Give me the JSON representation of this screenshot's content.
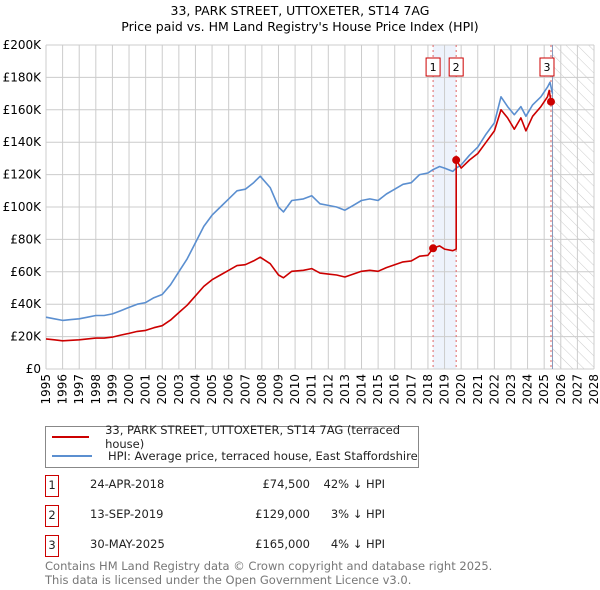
{
  "chart_data": {
    "type": "line",
    "title": "33, PARK STREET, UTTOXETER, ST14 7AG",
    "subtitle": "Price paid vs. HM Land Registry's House Price Index (HPI)",
    "xlim": [
      1995,
      2028
    ],
    "ylim": [
      0,
      200000
    ],
    "grid": true,
    "y_ticks": [
      0,
      20000,
      40000,
      60000,
      80000,
      100000,
      120000,
      140000,
      160000,
      180000,
      200000
    ],
    "y_tick_labels": [
      "£0",
      "£20K",
      "£40K",
      "£60K",
      "£80K",
      "£100K",
      "£120K",
      "£140K",
      "£160K",
      "£180K",
      "£200K"
    ],
    "x_tick_labels": [
      "1995",
      "1996",
      "1997",
      "1998",
      "1999",
      "2000",
      "2001",
      "2002",
      "2003",
      "2004",
      "2005",
      "2006",
      "2007",
      "2008",
      "2009",
      "2010",
      "2011",
      "2012",
      "2013",
      "2014",
      "2015",
      "2016",
      "2017",
      "2018",
      "2019",
      "2020",
      "2021",
      "2022",
      "2023",
      "2024",
      "2025",
      "2026",
      "2027",
      "2028"
    ],
    "series": [
      {
        "name": "33, PARK STREET, UTTOXETER, ST14 7AG (terraced house)",
        "color": "#cc0000",
        "points": [
          [
            1995,
            18600
          ],
          [
            1995.5,
            18000
          ],
          [
            1996,
            17400
          ],
          [
            1996.5,
            17700
          ],
          [
            1997,
            18000
          ],
          [
            1997.5,
            18600
          ],
          [
            1998,
            19100
          ],
          [
            1998.5,
            19100
          ],
          [
            1999,
            19700
          ],
          [
            1999.5,
            20900
          ],
          [
            2000,
            22000
          ],
          [
            2000.5,
            23200
          ],
          [
            2001,
            23800
          ],
          [
            2001.5,
            25500
          ],
          [
            2002,
            26700
          ],
          [
            2002.5,
            30200
          ],
          [
            2003,
            34800
          ],
          [
            2003.5,
            39400
          ],
          [
            2004,
            45200
          ],
          [
            2004.5,
            51000
          ],
          [
            2005,
            55100
          ],
          [
            2005.5,
            58000
          ],
          [
            2006,
            60900
          ],
          [
            2006.5,
            63800
          ],
          [
            2007,
            64400
          ],
          [
            2007.5,
            66700
          ],
          [
            2007.9,
            69000
          ],
          [
            2008.5,
            65000
          ],
          [
            2009,
            58000
          ],
          [
            2009.3,
            56300
          ],
          [
            2009.8,
            60300
          ],
          [
            2010.5,
            60900
          ],
          [
            2011,
            62000
          ],
          [
            2011.5,
            59200
          ],
          [
            2012,
            58600
          ],
          [
            2012.5,
            58000
          ],
          [
            2013,
            56800
          ],
          [
            2013.5,
            58600
          ],
          [
            2014,
            60300
          ],
          [
            2014.5,
            60900
          ],
          [
            2015,
            60300
          ],
          [
            2015.5,
            62600
          ],
          [
            2016,
            64400
          ],
          [
            2016.5,
            66100
          ],
          [
            2017,
            66700
          ],
          [
            2017.5,
            69600
          ],
          [
            2018,
            70200
          ],
          [
            2018.31,
            74500
          ],
          [
            2018.7,
            76000
          ],
          [
            2019,
            74000
          ],
          [
            2019.5,
            73000
          ],
          [
            2019.7,
            74000
          ],
          [
            2019.7,
            129000
          ],
          [
            2020,
            124000
          ],
          [
            2020.5,
            129000
          ],
          [
            2021,
            133000
          ],
          [
            2021.5,
            140000
          ],
          [
            2022,
            147000
          ],
          [
            2022.4,
            160000
          ],
          [
            2022.8,
            155000
          ],
          [
            2023.2,
            148000
          ],
          [
            2023.6,
            155000
          ],
          [
            2023.9,
            147000
          ],
          [
            2024.3,
            156000
          ],
          [
            2024.8,
            162000
          ],
          [
            2025.2,
            168000
          ],
          [
            2025.3,
            172000
          ],
          [
            2025.41,
            165000
          ]
        ]
      },
      {
        "name": "HPI: Average price, terraced house, East Staffordshire",
        "color": "#5b8fd0",
        "points": [
          [
            1995,
            32000
          ],
          [
            1995.5,
            31000
          ],
          [
            1996,
            30000
          ],
          [
            1996.5,
            30500
          ],
          [
            1997,
            31000
          ],
          [
            1997.5,
            32000
          ],
          [
            1998,
            33000
          ],
          [
            1998.5,
            33000
          ],
          [
            1999,
            34000
          ],
          [
            1999.5,
            36000
          ],
          [
            2000,
            38000
          ],
          [
            2000.5,
            40000
          ],
          [
            2001,
            41000
          ],
          [
            2001.5,
            44000
          ],
          [
            2002,
            46000
          ],
          [
            2002.5,
            52000
          ],
          [
            2003,
            60000
          ],
          [
            2003.5,
            68000
          ],
          [
            2004,
            78000
          ],
          [
            2004.5,
            88000
          ],
          [
            2005,
            95000
          ],
          [
            2005.5,
            100000
          ],
          [
            2006,
            105000
          ],
          [
            2006.5,
            110000
          ],
          [
            2007,
            111000
          ],
          [
            2007.5,
            115000
          ],
          [
            2007.9,
            119000
          ],
          [
            2008.5,
            112000
          ],
          [
            2009,
            100000
          ],
          [
            2009.3,
            97000
          ],
          [
            2009.8,
            104000
          ],
          [
            2010.5,
            105000
          ],
          [
            2011,
            107000
          ],
          [
            2011.5,
            102000
          ],
          [
            2012,
            101000
          ],
          [
            2012.5,
            100000
          ],
          [
            2013,
            98000
          ],
          [
            2013.5,
            101000
          ],
          [
            2014,
            104000
          ],
          [
            2014.5,
            105000
          ],
          [
            2015,
            104000
          ],
          [
            2015.5,
            108000
          ],
          [
            2016,
            111000
          ],
          [
            2016.5,
            114000
          ],
          [
            2017,
            115000
          ],
          [
            2017.5,
            120000
          ],
          [
            2018,
            121000
          ],
          [
            2018.3,
            123000
          ],
          [
            2018.7,
            125000
          ],
          [
            2019,
            124000
          ],
          [
            2019.5,
            122000
          ],
          [
            2019.7,
            124000
          ],
          [
            2020,
            126000
          ],
          [
            2020.5,
            132000
          ],
          [
            2021,
            137000
          ],
          [
            2021.5,
            145000
          ],
          [
            2022,
            152000
          ],
          [
            2022.4,
            168000
          ],
          [
            2022.8,
            162000
          ],
          [
            2023.2,
            157000
          ],
          [
            2023.6,
            162000
          ],
          [
            2023.9,
            156000
          ],
          [
            2024.3,
            163000
          ],
          [
            2024.8,
            168000
          ],
          [
            2025.2,
            174000
          ],
          [
            2025.35,
            177000
          ],
          [
            2025.5,
            170000
          ]
        ]
      }
    ],
    "sales": [
      {
        "label": "1",
        "x": 2018.31,
        "price": 74500
      },
      {
        "label": "2",
        "x": 2019.7,
        "price": 129000
      },
      {
        "label": "3",
        "x": 2025.41,
        "price": 165000
      }
    ],
    "shaded_range": [
      2018.31,
      2019.7
    ],
    "forecast_hatch_from": 2025.5
  },
  "legend": [
    {
      "label": "33, PARK STREET, UTTOXETER, ST14 7AG (terraced house)",
      "color": "#cc0000"
    },
    {
      "label": "HPI: Average price, terraced house, East Staffordshire",
      "color": "#5b8fd0"
    }
  ],
  "sales_table": [
    {
      "num": "1",
      "date": "24-APR-2018",
      "price": "£74,500",
      "hpi": "42% ↓ HPI"
    },
    {
      "num": "2",
      "date": "13-SEP-2019",
      "price": "£129,000",
      "hpi": "3% ↓ HPI"
    },
    {
      "num": "3",
      "date": "30-MAY-2025",
      "price": "£165,000",
      "hpi": "4% ↓ HPI"
    }
  ],
  "footer": {
    "line1": "Contains HM Land Registry data © Crown copyright and database right 2025.",
    "line2": "This data is licensed under the Open Government Licence v3.0."
  }
}
